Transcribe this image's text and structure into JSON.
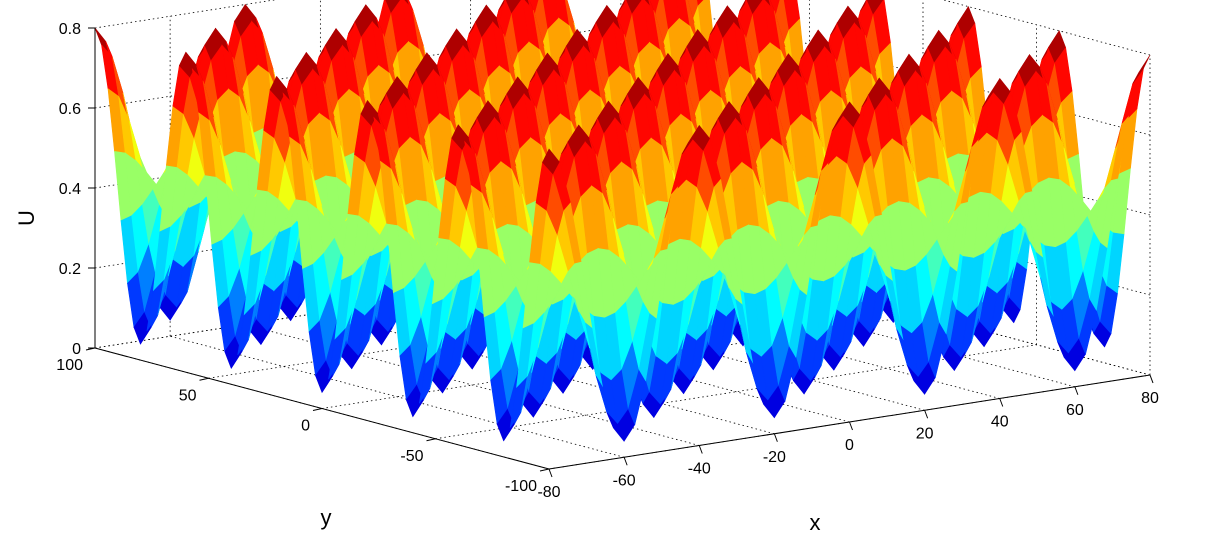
{
  "chart_data": {
    "type": "surface3d",
    "title": "",
    "xlabel": "x",
    "ylabel": "y",
    "zlabel": "U",
    "x_ticks": [
      -80,
      -60,
      -40,
      -20,
      0,
      20,
      40,
      60,
      80
    ],
    "y_ticks": [
      -100,
      -50,
      0,
      50,
      100
    ],
    "z_ticks": [
      0,
      0.2,
      0.4,
      0.6,
      0.8
    ],
    "x_tick_labels": [
      "-80",
      "-60",
      "-40",
      "-20",
      "0",
      "20",
      "40",
      "60",
      "80"
    ],
    "y_tick_labels": [
      "-100",
      "-50",
      "0",
      "50",
      "100"
    ],
    "z_tick_labels": [
      "0",
      "0.2",
      "0.4",
      "0.6",
      "0.8"
    ],
    "xlim": [
      -80,
      80
    ],
    "ylim": [
      -100,
      100
    ],
    "zlim": [
      0,
      0.8
    ],
    "grid": true,
    "colormap": "jet",
    "surface": "U = 0.42 - 0.38·cos(2πx/40)·cos(2πy/40), x ∈ [-80,80], y ∈ [-100,100]"
  }
}
